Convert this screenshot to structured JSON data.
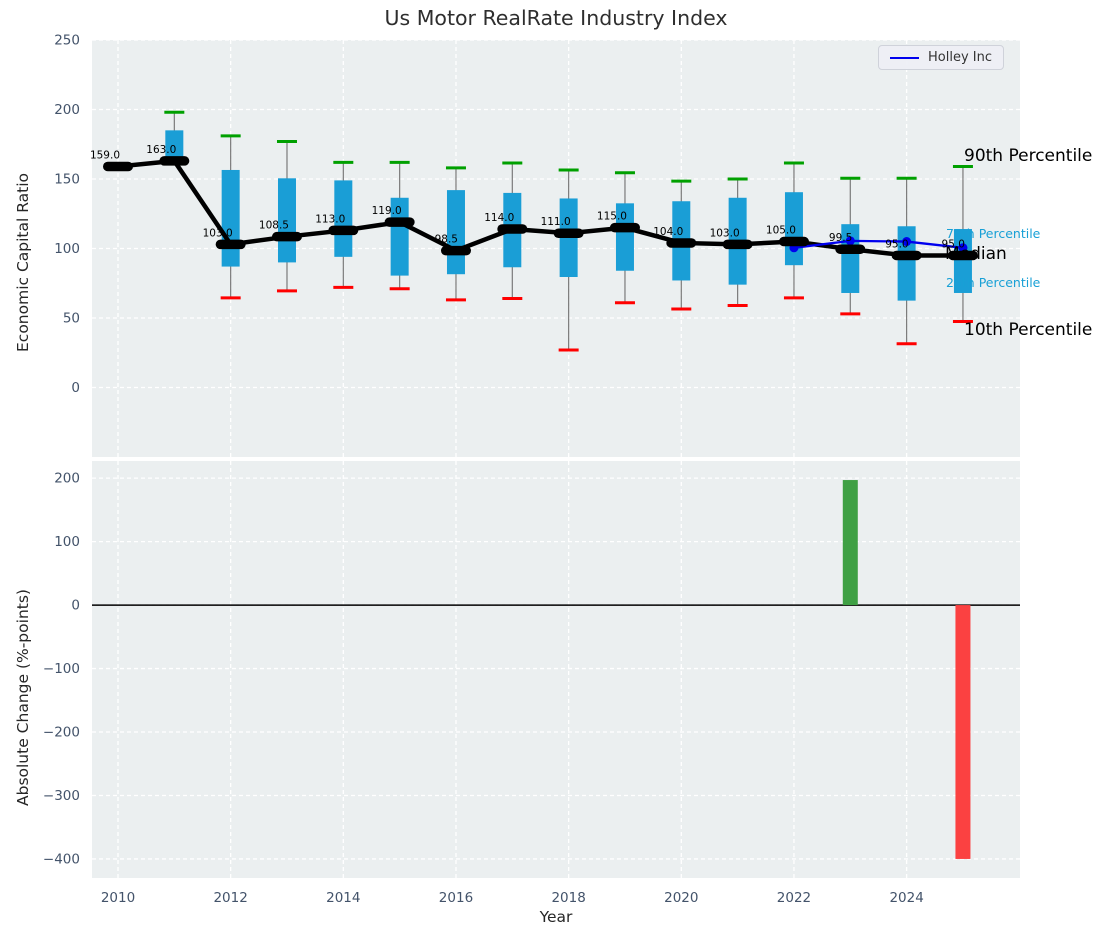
{
  "title": "Us Motor RealRate Industry Index",
  "legend": {
    "label": "Holley Inc"
  },
  "annotations": {
    "p90": "90th Percentile",
    "p75": "75th Percentile",
    "median": "Median",
    "p25": "25th Percentile",
    "p10": "10th Percentile"
  },
  "colors": {
    "panel_bg": "#ebeff0",
    "grid": "#ffffff",
    "box_blue": "#1a9ed6",
    "cap_green": "#00a000",
    "cap_red": "#ff0000",
    "median_black": "#000000",
    "holley_blue": "#0000ee",
    "bar_up_green": "#3fa044",
    "bar_down_red": "#fb4141",
    "tick_text": "#43536a",
    "value_label": "#000000",
    "zero_line": "#000000",
    "whisker_gray": "#7a7a7a"
  },
  "chart_data": [
    {
      "type": "boxplot+line",
      "title": "Us Motor RealRate Industry Index",
      "ylabel": "Economic Capital Ratio",
      "ylim": [
        -50,
        250
      ],
      "yticks": [
        250,
        200,
        150,
        100,
        50,
        0
      ],
      "ytick_labels": [
        "250",
        "200",
        "150",
        "100",
        "50",
        "0"
      ],
      "grid": true,
      "legend_position": "upper right",
      "years": [
        2010,
        2011,
        2012,
        2013,
        2014,
        2015,
        2016,
        2017,
        2018,
        2019,
        2020,
        2021,
        2022,
        2023,
        2024,
        2025
      ],
      "median": [
        159.0,
        163.0,
        103.0,
        108.5,
        113.0,
        119.0,
        98.5,
        114.0,
        111.0,
        115.0,
        104.0,
        103.0,
        105.0,
        99.5,
        95.0,
        95.0
      ],
      "median_labels": [
        "159.0",
        "163.0",
        "103.0",
        "108.5",
        "113.0",
        "119.0",
        "98.5",
        "114.0",
        "111.0",
        "115.0",
        "104.0",
        "103.0",
        "105.0",
        "99.5",
        "95.0",
        "95.0"
      ],
      "q3_75th": [
        160.5,
        185,
        156.5,
        150.5,
        149,
        136.5,
        142,
        140,
        136,
        132.5,
        134,
        136.5,
        140.5,
        117.5,
        116,
        114
      ],
      "q1_25th": [
        156,
        163,
        87,
        90,
        94,
        80.5,
        81.5,
        86.5,
        79.5,
        84,
        77,
        74,
        88,
        68,
        62.5,
        68
      ],
      "p90_whisker": [
        161,
        198,
        181,
        177,
        162,
        162,
        158,
        161.5,
        156.5,
        154.5,
        148.5,
        150,
        161.5,
        150.5,
        150.5,
        159
      ],
      "p10_whisker": [
        null,
        null,
        64.5,
        69.5,
        72,
        71,
        63,
        64,
        27,
        61,
        56.5,
        59,
        64.5,
        53,
        31.5,
        47.5
      ],
      "series": [
        {
          "name": "Holley Inc",
          "x": [
            2022,
            2023,
            2024,
            2025
          ],
          "values": [
            100.5,
            105.5,
            105,
            100.5
          ]
        }
      ]
    },
    {
      "type": "bar",
      "ylabel": "Absolute Change (%-points)",
      "xlabel": "Year",
      "ylim": [
        -430,
        227
      ],
      "yticks": [
        200,
        100,
        0,
        -100,
        -200,
        -300,
        -400
      ],
      "ytick_labels": [
        "200",
        "100",
        "0",
        "−100",
        "−200",
        "−300",
        "−400"
      ],
      "xticks": [
        2010,
        2012,
        2014,
        2016,
        2018,
        2020,
        2022,
        2024
      ],
      "xtick_labels": [
        "2010",
        "2012",
        "2014",
        "2016",
        "2018",
        "2020",
        "2022",
        "2024"
      ],
      "grid": true,
      "bars": [
        {
          "year": 2023,
          "value": 197,
          "color": "up"
        },
        {
          "year": 2025,
          "value": -400,
          "color": "down"
        }
      ]
    }
  ]
}
